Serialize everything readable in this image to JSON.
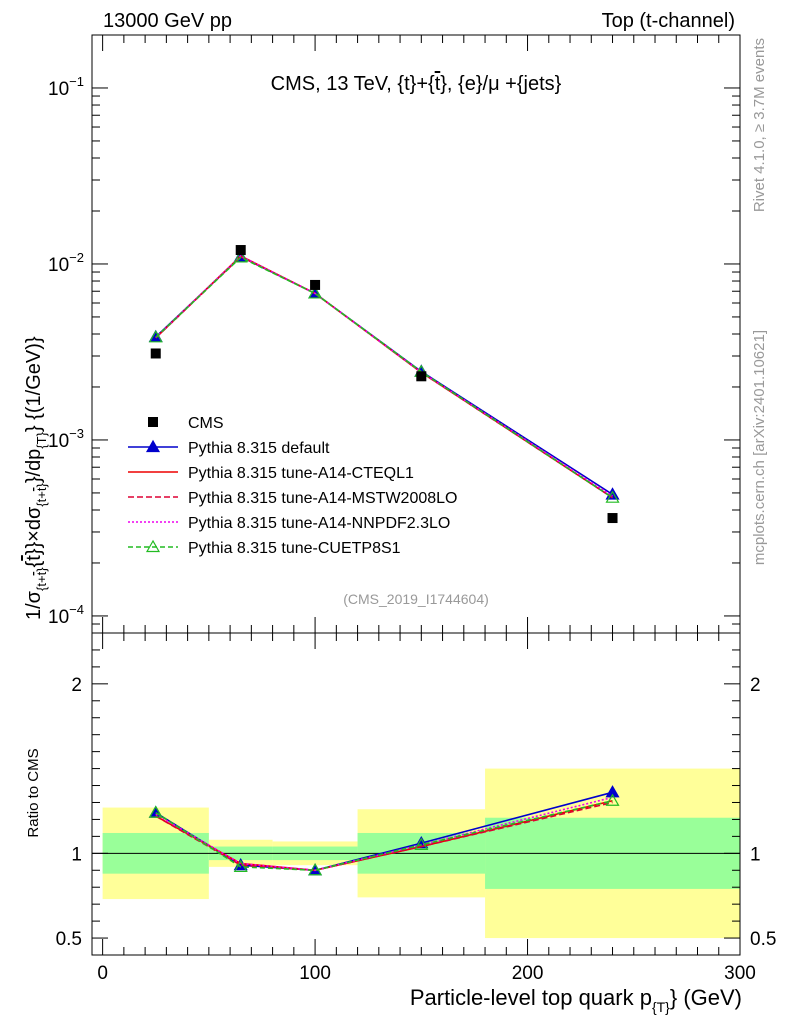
{
  "header": {
    "left": "13000 GeV pp",
    "right": "Top (t-channel)",
    "rivet": "Rivet 4.1.0, ≥ 3.7M events",
    "site": "mcplots.cern.ch [arXiv:2401.10621]"
  },
  "chart_data": [
    {
      "type": "scatter",
      "title": "CMS, 13 TeV, {t}+{t̅}, {e}/μ +{jets}",
      "analysis_tag": "(CMS_2019_I1744604)",
      "ylabel": "1/σ_{t+t̅} × dσ_{t+t̅}/dp_T  {(1/GeV)}",
      "yscale": "log",
      "ylim": [
        8e-05,
        0.2
      ],
      "xlim": [
        -5,
        300
      ],
      "y_ticks": [
        {
          "value": 0.1,
          "label": "10",
          "exp": "−1"
        },
        {
          "value": 0.01,
          "label": "10",
          "exp": "−2"
        },
        {
          "value": 0.001,
          "label": "10",
          "exp": "−3"
        },
        {
          "value": 0.0001,
          "label": "10",
          "exp": "−4"
        }
      ],
      "legend_position": "lower-left",
      "data": {
        "name": "CMS",
        "x": [
          25,
          65,
          100,
          150,
          240
        ],
        "y": [
          0.0031,
          0.012,
          0.0076,
          0.0023,
          0.00036
        ]
      },
      "series": [
        {
          "name": "Pythia 8.315 default",
          "color": "#0000cc",
          "dash": "none",
          "marker": "filled-triangle",
          "x": [
            25,
            65,
            100,
            150,
            240
          ],
          "y": [
            0.00385,
            0.011,
            0.0068,
            0.00245,
            0.00049
          ]
        },
        {
          "name": "Pythia 8.315 tune-A14-CTEQL1",
          "color": "#ee0000",
          "dash": "none",
          "marker": "none",
          "x": [
            25,
            65,
            100,
            150,
            240
          ],
          "y": [
            0.0038,
            0.0111,
            0.0068,
            0.00242,
            0.00047
          ]
        },
        {
          "name": "Pythia 8.315 tune-A14-MSTW2008LO",
          "color": "#dd0033",
          "dash": "6,3",
          "marker": "none",
          "x": [
            25,
            65,
            100,
            150,
            240
          ],
          "y": [
            0.0038,
            0.011,
            0.0068,
            0.00242,
            0.00047
          ]
        },
        {
          "name": "Pythia 8.315 tune-A14-NNPDF2.3LO",
          "color": "#ee00ee",
          "dash": "2,2",
          "marker": "none",
          "x": [
            25,
            65,
            100,
            150,
            240
          ],
          "y": [
            0.00382,
            0.0111,
            0.0068,
            0.00243,
            0.00048
          ]
        },
        {
          "name": "Pythia 8.315 tune-CUETP8S1",
          "color": "#22bb22",
          "dash": "5,3",
          "marker": "open-triangle",
          "x": [
            25,
            65,
            100,
            150,
            240
          ],
          "y": [
            0.00383,
            0.0109,
            0.0068,
            0.00244,
            0.00047
          ]
        }
      ]
    },
    {
      "type": "scatter",
      "ylabel": "Ratio to CMS",
      "xlabel": "Particle-level top quark p_T (GeV)",
      "ylim": [
        0.4,
        2.3
      ],
      "xlim": [
        -5,
        300
      ],
      "y_ticks": [
        {
          "value": 0.5,
          "label": "0.5"
        },
        {
          "value": 1,
          "label": "1"
        },
        {
          "value": 2,
          "label": "2"
        }
      ],
      "x_ticks": [
        {
          "value": 0,
          "label": "0"
        },
        {
          "value": 100,
          "label": "100"
        },
        {
          "value": 200,
          "label": "200"
        },
        {
          "value": 300,
          "label": "300"
        }
      ],
      "bands": [
        {
          "x_low": 0,
          "x_high": 50,
          "inner": [
            0.88,
            1.12
          ],
          "outer": [
            0.73,
            1.27
          ]
        },
        {
          "x_low": 50,
          "x_high": 80,
          "inner": [
            0.96,
            1.04
          ],
          "outer": [
            0.92,
            1.08
          ]
        },
        {
          "x_low": 80,
          "x_high": 120,
          "inner": [
            0.96,
            1.04
          ],
          "outer": [
            0.93,
            1.07
          ]
        },
        {
          "x_low": 120,
          "x_high": 180,
          "inner": [
            0.88,
            1.12
          ],
          "outer": [
            0.74,
            1.26
          ]
        },
        {
          "x_low": 180,
          "x_high": 300,
          "inner": [
            0.79,
            1.21
          ],
          "outer": [
            0.5,
            1.5
          ]
        }
      ],
      "series": [
        {
          "name": "Pythia 8.315 default",
          "color": "#0000cc",
          "dash": "none",
          "marker": "filled-triangle",
          "x": [
            25,
            65,
            100,
            150,
            240
          ],
          "y": [
            1.24,
            0.93,
            0.9,
            1.06,
            1.36
          ]
        },
        {
          "name": "Pythia 8.315 tune-A14-CTEQL1",
          "color": "#ee0000",
          "dash": "none",
          "marker": "none",
          "x": [
            25,
            65,
            100,
            150,
            240
          ],
          "y": [
            1.22,
            0.94,
            0.9,
            1.04,
            1.31
          ]
        },
        {
          "name": "Pythia 8.315 tune-A14-MSTW2008LO",
          "color": "#dd0033",
          "dash": "6,3",
          "marker": "none",
          "x": [
            25,
            65,
            100,
            150,
            240
          ],
          "y": [
            1.22,
            0.93,
            0.9,
            1.04,
            1.3
          ]
        },
        {
          "name": "Pythia 8.315 tune-A14-NNPDF2.3LO",
          "color": "#ee00ee",
          "dash": "2,2",
          "marker": "none",
          "x": [
            25,
            65,
            100,
            150,
            240
          ],
          "y": [
            1.23,
            0.94,
            0.9,
            1.05,
            1.33
          ]
        },
        {
          "name": "Pythia 8.315 tune-CUETP8S1",
          "color": "#22bb22",
          "dash": "5,3",
          "marker": "open-triangle",
          "x": [
            25,
            65,
            100,
            150,
            240
          ],
          "y": [
            1.24,
            0.92,
            0.9,
            1.05,
            1.31
          ]
        }
      ]
    }
  ],
  "colors": {
    "band_inner": "#99ff99",
    "band_outer": "#ffff99",
    "data": "#000000"
  }
}
